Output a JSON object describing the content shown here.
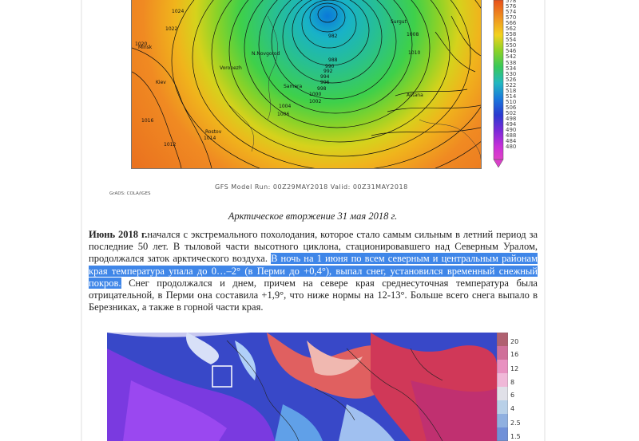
{
  "weather_map": {
    "city_labels": [
      "Minsk",
      "Kiev",
      "Voronezh",
      "N.Novgorod",
      "Samara",
      "Rostov",
      "Astana",
      "Surgut"
    ],
    "pressure_labels": [
      "1024",
      "1022",
      "1020",
      "1016",
      "1014",
      "1012",
      "1010",
      "1008",
      "1006",
      "1004",
      "1002",
      "1000",
      "998",
      "996",
      "994",
      "992",
      "990",
      "988",
      "982"
    ],
    "colorbar_ticks": [
      "578",
      "576",
      "574",
      "570",
      "566",
      "562",
      "558",
      "554",
      "550",
      "546",
      "542",
      "538",
      "534",
      "530",
      "526",
      "522",
      "518",
      "514",
      "510",
      "506",
      "502",
      "498",
      "494",
      "490",
      "488",
      "484",
      "480"
    ],
    "model_caption": "GFS Model Run: 00Z29MAY2018  Valid: 00Z31MAY2018",
    "credit": "GrADS: COLA/IGES"
  },
  "figure_caption": "Арктическое вторжение 31 мая 2018 г.",
  "paragraph": {
    "lead": "Июнь 2018 г.",
    "text1": "начался с экстремального похолодания, которое стало самым сильным в летний период за последние 50 лет. В тыловой части высотного циклона, стационировавшего над Северным Уралом, продолжался заток арктического воздуха. ",
    "highlight": "В ночь на 1 июня по всем северным и центральным районам края температура упала до 0…–2° (в Перми до +0,4°), выпал снег, установился временный снежный покров.",
    "text2": " Снег продолжался и днем, причем на севере края среднесуточная температура была отрицательной, в Перми она составила +1,9°, что ниже нормы на 12-13°. Больше всего снега выпало в Березниках, а также в горной части края."
  },
  "temp_map": {
    "colorbar_ticks": [
      "20",
      "16",
      "12",
      "8",
      "6",
      "4",
      "2.5",
      "1.5"
    ]
  }
}
